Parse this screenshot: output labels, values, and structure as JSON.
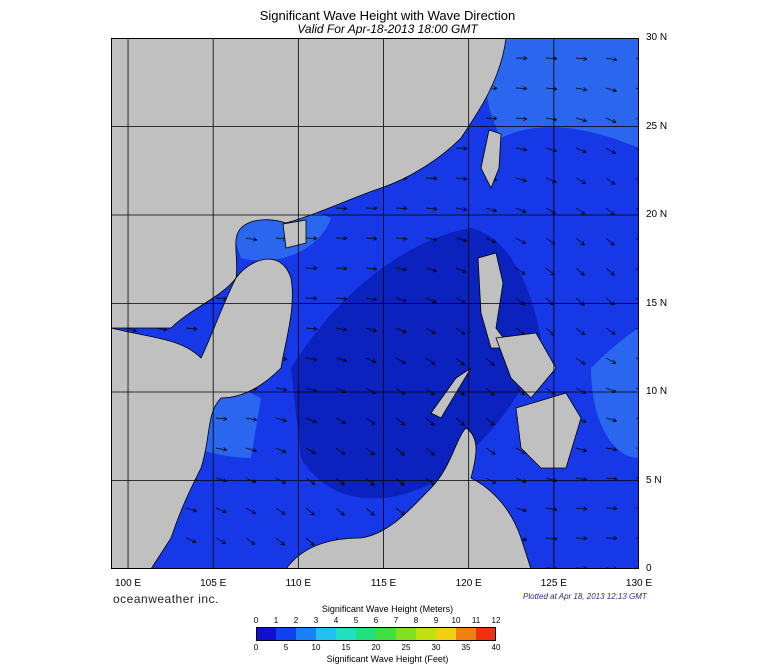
{
  "title": "Significant Wave Height with Wave Direction",
  "subtitle": "Valid For Apr-18-2013 18:00 GMT",
  "brand": "oceanweather inc.",
  "plotted": "Plotted at Apr 18, 2013 12:13 GMT",
  "map": {
    "lat_labels": [
      {
        "value": 30,
        "text": "30 N"
      },
      {
        "value": 25,
        "text": "25 N"
      },
      {
        "value": 20,
        "text": "20 N"
      },
      {
        "value": 15,
        "text": "15 N"
      },
      {
        "value": 10,
        "text": "10 N"
      },
      {
        "value": 5,
        "text": "5 N"
      },
      {
        "value": 0,
        "text": "0"
      }
    ],
    "lon_labels": [
      {
        "value": 100,
        "text": "100 E"
      },
      {
        "value": 105,
        "text": "105 E"
      },
      {
        "value": 110,
        "text": "110 E"
      },
      {
        "value": 115,
        "text": "115 E"
      },
      {
        "value": 120,
        "text": "120 E"
      },
      {
        "value": 125,
        "text": "125 E"
      },
      {
        "value": 130,
        "text": "130 E"
      }
    ],
    "lat_range": [
      0,
      30
    ],
    "lon_range": [
      99,
      130
    ],
    "colors": {
      "land": "#c0c0c0",
      "sea": "#1638e6",
      "calm": "#0b22bf",
      "swell": "#2a66ee",
      "coast": "#000000"
    }
  },
  "legend": {
    "meters_title": "Significant Wave Height (Meters)",
    "feet_title": "Significant Wave Height (Feet)",
    "meters_ticks": [
      "0",
      "1",
      "2",
      "3",
      "4",
      "5",
      "6",
      "7",
      "8",
      "9",
      "10",
      "11",
      "12"
    ],
    "feet_ticks": [
      "0",
      "5",
      "10",
      "15",
      "20",
      "25",
      "30",
      "35",
      "40"
    ],
    "colors": [
      "#1010d0",
      "#1040f0",
      "#1a80f8",
      "#20c0f0",
      "#20e0c0",
      "#20e080",
      "#40e040",
      "#80e020",
      "#c0e010",
      "#f0d010",
      "#f08010",
      "#f03010"
    ]
  }
}
